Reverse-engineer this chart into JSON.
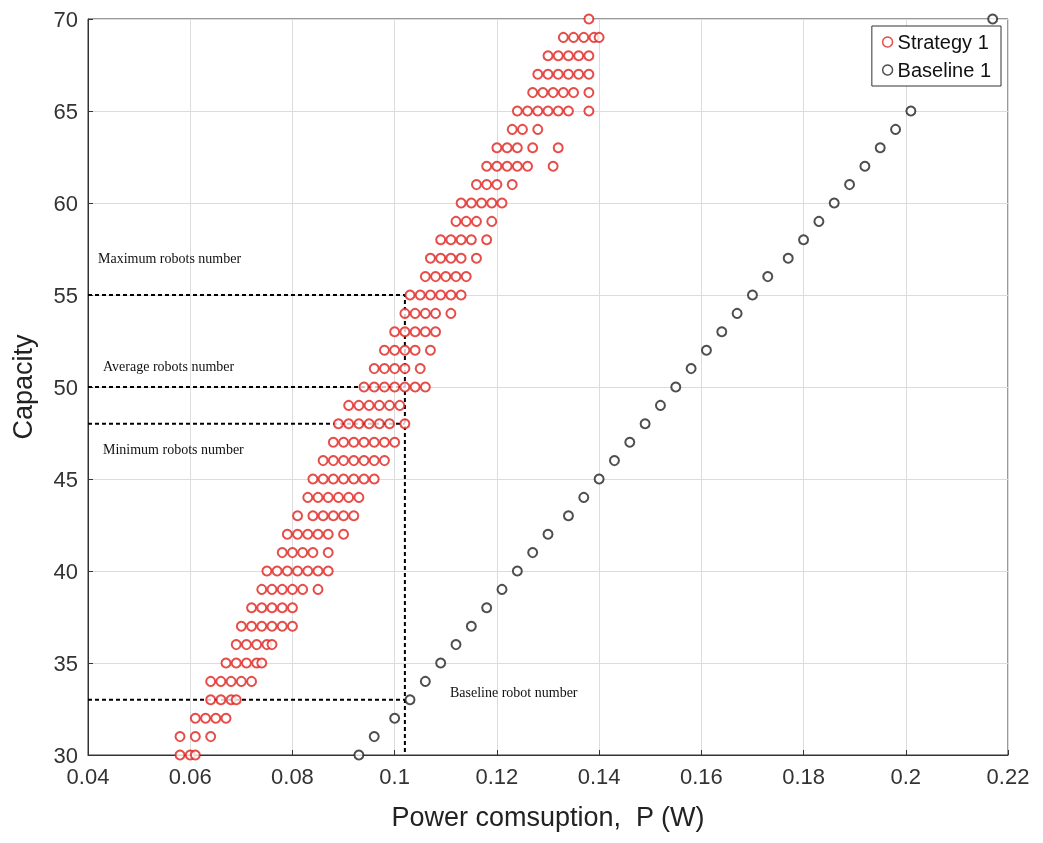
{
  "chart_data": {
    "type": "scatter",
    "xlabel": "Power comsuption,  P (W)",
    "ylabel": "Capacity",
    "xlim": [
      0.04,
      0.22
    ],
    "xticks": [
      0.04,
      0.06,
      0.08,
      0.1,
      0.12,
      0.14,
      0.16,
      0.18,
      0.2,
      0.22
    ],
    "ylim": [
      30,
      70
    ],
    "yticks": [
      30,
      35,
      40,
      45,
      50,
      55,
      60,
      65,
      70
    ],
    "grid": true,
    "legend": "top right",
    "marker": "circle",
    "series": [
      {
        "name": "Strategy 1",
        "color": "#e0201b",
        "x": [
          0.058,
          0.06,
          0.061,
          0.058,
          0.061,
          0.064,
          0.061,
          0.063,
          0.065,
          0.067,
          0.064,
          0.066,
          0.068,
          0.069,
          0.064,
          0.066,
          0.068,
          0.07,
          0.072,
          0.067,
          0.069,
          0.071,
          0.073,
          0.074,
          0.069,
          0.071,
          0.073,
          0.075,
          0.076,
          0.07,
          0.072,
          0.074,
          0.076,
          0.078,
          0.08,
          0.072,
          0.074,
          0.076,
          0.078,
          0.08,
          0.074,
          0.076,
          0.078,
          0.08,
          0.082,
          0.085,
          0.075,
          0.077,
          0.079,
          0.081,
          0.083,
          0.085,
          0.087,
          0.078,
          0.08,
          0.082,
          0.084,
          0.087,
          0.079,
          0.081,
          0.083,
          0.085,
          0.087,
          0.09,
          0.081,
          0.084,
          0.086,
          0.088,
          0.09,
          0.092,
          0.083,
          0.085,
          0.087,
          0.089,
          0.091,
          0.093,
          0.084,
          0.086,
          0.088,
          0.09,
          0.092,
          0.094,
          0.096,
          0.086,
          0.088,
          0.09,
          0.092,
          0.094,
          0.096,
          0.098,
          0.088,
          0.09,
          0.092,
          0.094,
          0.096,
          0.098,
          0.1,
          0.089,
          0.091,
          0.093,
          0.095,
          0.097,
          0.099,
          0.102,
          0.091,
          0.093,
          0.095,
          0.097,
          0.099,
          0.101,
          0.094,
          0.096,
          0.098,
          0.1,
          0.102,
          0.104,
          0.106,
          0.096,
          0.098,
          0.1,
          0.102,
          0.105,
          0.098,
          0.1,
          0.102,
          0.104,
          0.107,
          0.1,
          0.102,
          0.104,
          0.106,
          0.108,
          0.102,
          0.104,
          0.106,
          0.108,
          0.111,
          0.103,
          0.105,
          0.107,
          0.109,
          0.111,
          0.113,
          0.106,
          0.108,
          0.11,
          0.112,
          0.114,
          0.107,
          0.109,
          0.111,
          0.113,
          0.116,
          0.109,
          0.111,
          0.113,
          0.115,
          0.118,
          0.112,
          0.114,
          0.116,
          0.119,
          0.113,
          0.115,
          0.117,
          0.119,
          0.121,
          0.116,
          0.118,
          0.12,
          0.123,
          0.118,
          0.12,
          0.122,
          0.124,
          0.126,
          0.131,
          0.12,
          0.122,
          0.124,
          0.127,
          0.132,
          0.123,
          0.125,
          0.128,
          0.124,
          0.126,
          0.128,
          0.13,
          0.132,
          0.134,
          0.138,
          0.127,
          0.129,
          0.131,
          0.133,
          0.135,
          0.138,
          0.128,
          0.13,
          0.132,
          0.134,
          0.136,
          0.138,
          0.13,
          0.132,
          0.134,
          0.136,
          0.138,
          0.133,
          0.135,
          0.137,
          0.139,
          0.14,
          0.138
        ],
        "values": [
          30,
          30,
          30,
          31,
          31,
          31,
          32,
          32,
          32,
          32,
          33,
          33,
          33,
          33,
          34,
          34,
          34,
          34,
          34,
          35,
          35,
          35,
          35,
          35,
          36,
          36,
          36,
          36,
          36,
          37,
          37,
          37,
          37,
          37,
          37,
          38,
          38,
          38,
          38,
          38,
          39,
          39,
          39,
          39,
          39,
          39,
          40,
          40,
          40,
          40,
          40,
          40,
          40,
          41,
          41,
          41,
          41,
          41,
          42,
          42,
          42,
          42,
          42,
          42,
          43,
          43,
          43,
          43,
          43,
          43,
          44,
          44,
          44,
          44,
          44,
          44,
          45,
          45,
          45,
          45,
          45,
          45,
          45,
          46,
          46,
          46,
          46,
          46,
          46,
          46,
          47,
          47,
          47,
          47,
          47,
          47,
          47,
          48,
          48,
          48,
          48,
          48,
          48,
          48,
          49,
          49,
          49,
          49,
          49,
          49,
          50,
          50,
          50,
          50,
          50,
          50,
          50,
          51,
          51,
          51,
          51,
          51,
          52,
          52,
          52,
          52,
          52,
          53,
          53,
          53,
          53,
          53,
          54,
          54,
          54,
          54,
          54,
          55,
          55,
          55,
          55,
          55,
          55,
          56,
          56,
          56,
          56,
          56,
          57,
          57,
          57,
          57,
          57,
          58,
          58,
          58,
          58,
          58,
          59,
          59,
          59,
          59,
          60,
          60,
          60,
          60,
          60,
          61,
          61,
          61,
          61,
          62,
          62,
          62,
          62,
          62,
          62,
          63,
          63,
          63,
          63,
          63,
          64,
          64,
          64,
          65,
          65,
          65,
          65,
          65,
          65,
          65,
          66,
          66,
          66,
          66,
          66,
          66,
          67,
          67,
          67,
          67,
          67,
          67,
          68,
          68,
          68,
          68,
          68,
          69,
          69,
          69,
          69,
          69,
          70
        ]
      },
      {
        "name": "Baseline 1",
        "color": "#222222",
        "x": [
          0.093,
          0.096,
          0.1,
          0.103,
          0.106,
          0.109,
          0.112,
          0.115,
          0.118,
          0.121,
          0.124,
          0.127,
          0.13,
          0.134,
          0.137,
          0.14,
          0.143,
          0.146,
          0.149,
          0.152,
          0.155,
          0.158,
          0.161,
          0.164,
          0.167,
          0.17,
          0.173,
          0.177,
          0.18,
          0.183,
          0.186,
          0.189,
          0.192,
          0.195,
          0.198,
          0.201,
          0.217
        ],
        "values": [
          30,
          31,
          32,
          33,
          34,
          35,
          36,
          37,
          38,
          39,
          40,
          41,
          42,
          43,
          44,
          45,
          46,
          47,
          48,
          49,
          50,
          51,
          52,
          53,
          54,
          55,
          56,
          57,
          58,
          59,
          60,
          61,
          62,
          63,
          64,
          65,
          70
        ]
      },
      {
        "type": "line",
        "color": "#000000",
        "line_style": "dashed",
        "marker": "none",
        "x": [
          0.04,
          0.102,
          0.102
        ],
        "values": [
          55,
          55,
          30
        ]
      },
      {
        "type": "line",
        "color": "#000000",
        "line_style": "dashed",
        "marker": "none",
        "x": [
          0.04,
          0.102
        ],
        "values": [
          50,
          50
        ]
      },
      {
        "type": "line",
        "color": "#000000",
        "line_style": "dashed",
        "marker": "none",
        "x": [
          0.04,
          0.102
        ],
        "values": [
          48,
          48
        ]
      },
      {
        "type": "line",
        "color": "#000000",
        "line_style": "dashed",
        "marker": "none",
        "x": [
          0.04,
          0.102
        ],
        "values": [
          33,
          33
        ]
      }
    ],
    "annotations": [
      "Maximum robots number",
      "Average robots number",
      "Minimum robots number",
      "Baseline robot number"
    ]
  }
}
